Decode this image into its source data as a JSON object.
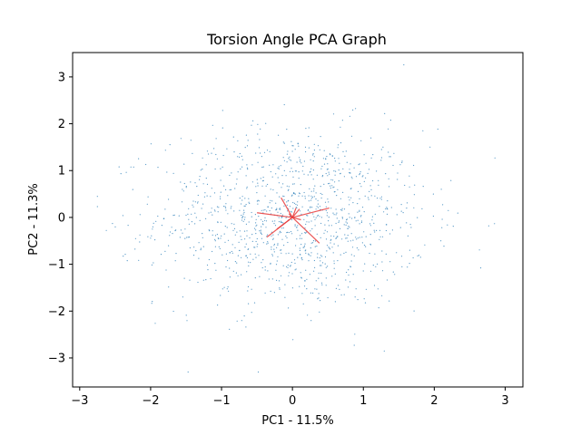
{
  "chart_data": {
    "type": "scatter",
    "title": "Torsion Angle PCA Graph",
    "xlabel": "PC1 - 11.5%",
    "ylabel": "PC2 - 11.3%",
    "xlim": [
      -3.1,
      3.25
    ],
    "ylim": [
      -3.62,
      3.52
    ],
    "xticks": [
      -3,
      -2,
      -1,
      0,
      1,
      2,
      3
    ],
    "yticks": [
      -3,
      -2,
      -1,
      0,
      1,
      2,
      3
    ],
    "xtick_labels": [
      "−3",
      "−2",
      "−1",
      "0",
      "1",
      "2",
      "3"
    ],
    "ytick_labels": [
      "−3",
      "−2",
      "−1",
      "0",
      "1",
      "2",
      "3"
    ],
    "grid": false,
    "legend": "none",
    "series": [
      {
        "kind": "points",
        "color": "#1f77b4",
        "n_points": 1200,
        "x_std": 0.95,
        "y_std": 0.95,
        "x_range": [
          -2.75,
          2.95
        ],
        "y_range": [
          -3.3,
          3.3
        ],
        "note_values": "dense cloud centered near (0,0)"
      },
      {
        "kind": "loading-vectors",
        "color": "#e8393a",
        "vectors": [
          {
            "x": 0.52,
            "y": 0.2
          },
          {
            "x": -0.5,
            "y": 0.1
          },
          {
            "x": 0.38,
            "y": -0.55
          },
          {
            "x": -0.36,
            "y": -0.42
          },
          {
            "x": -0.16,
            "y": 0.42
          },
          {
            "x": 0.05,
            "y": 0.2
          },
          {
            "x": 0.1,
            "y": 0.18
          },
          {
            "x": -0.22,
            "y": -0.25
          },
          {
            "x": 0.12,
            "y": -0.05
          },
          {
            "x": -0.05,
            "y": 0.08
          }
        ]
      }
    ]
  }
}
